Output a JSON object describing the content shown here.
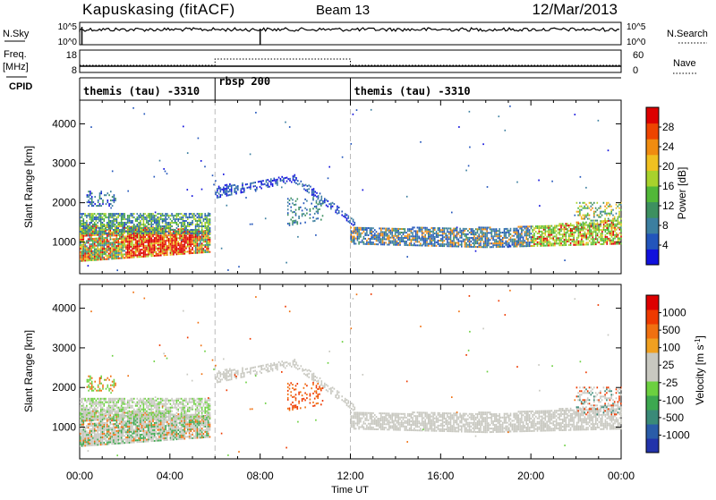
{
  "header": {
    "station": "Kapuskasing (fitACF)",
    "beam": "Beam 13",
    "date": "12/Mar/2013"
  },
  "top_panels": {
    "nsky_label": "N.Sky",
    "nsky_ticks": [
      "10^5",
      "10^0"
    ],
    "nsearch_label": "N.Search",
    "nsearch_ticks": [
      "10^5",
      "10^0"
    ],
    "freq_label": "Freq.",
    "freq_unit": "[MHz]",
    "freq_ticks": [
      "18",
      "8"
    ],
    "nave_label": "Nave",
    "nave_ticks": [
      "60",
      "0"
    ],
    "cpid_label": "CPID",
    "cpid_segments": [
      {
        "label": "themis (tau) -3310",
        "start_h": 0,
        "end_h": 6
      },
      {
        "label": "rbsp 200",
        "start_h": 6,
        "end_h": 12
      },
      {
        "label": "themis (tau) -3310",
        "start_h": 12,
        "end_h": 24
      }
    ]
  },
  "chart_data": [
    {
      "type": "heatmap",
      "quantity": "Power",
      "ylabel": "Slant Range [km]",
      "yticks": [
        1000,
        2000,
        3000,
        4000
      ],
      "ylim": [
        200,
        4600
      ],
      "xlim": [
        0,
        24
      ],
      "colorbar_label": "Power [dB]",
      "colorbar_ticks": [
        "28",
        "24",
        "20",
        "16",
        "12",
        "8",
        "4"
      ],
      "colorbar_colors": [
        "#1111dd",
        "#2255bb",
        "#3c7fa0",
        "#3d9060",
        "#52b838",
        "#a8d22c",
        "#f0c020",
        "#f08c10",
        "#ee4400",
        "#dd0000"
      ],
      "mode_boundaries_h": [
        6,
        12
      ]
    },
    {
      "type": "heatmap",
      "quantity": "Velocity",
      "ylabel": "Slant Range [km]",
      "yticks": [
        1000,
        2000,
        3000,
        4000
      ],
      "ylim": [
        200,
        4600
      ],
      "xlim": [
        0,
        24
      ],
      "xticks": [
        "00:00",
        "04:00",
        "08:00",
        "12:00",
        "16:00",
        "20:00",
        "00:00"
      ],
      "xlabel": "Time UT",
      "colorbar_label": "Velocity [m s-1]",
      "colorbar_ticks": [
        "1000",
        "500",
        "100",
        "25",
        "-25",
        "-100",
        "-500",
        "-1000"
      ],
      "colorbar_colors": [
        "#2233aa",
        "#2a5ca8",
        "#3a8a78",
        "#3da850",
        "#6cd040",
        "#c8c8c0",
        "#c8c8c0",
        "#f0a020",
        "#f07010",
        "#ee3a00",
        "#dd0000"
      ],
      "mode_boundaries_h": [
        6,
        12
      ]
    }
  ]
}
